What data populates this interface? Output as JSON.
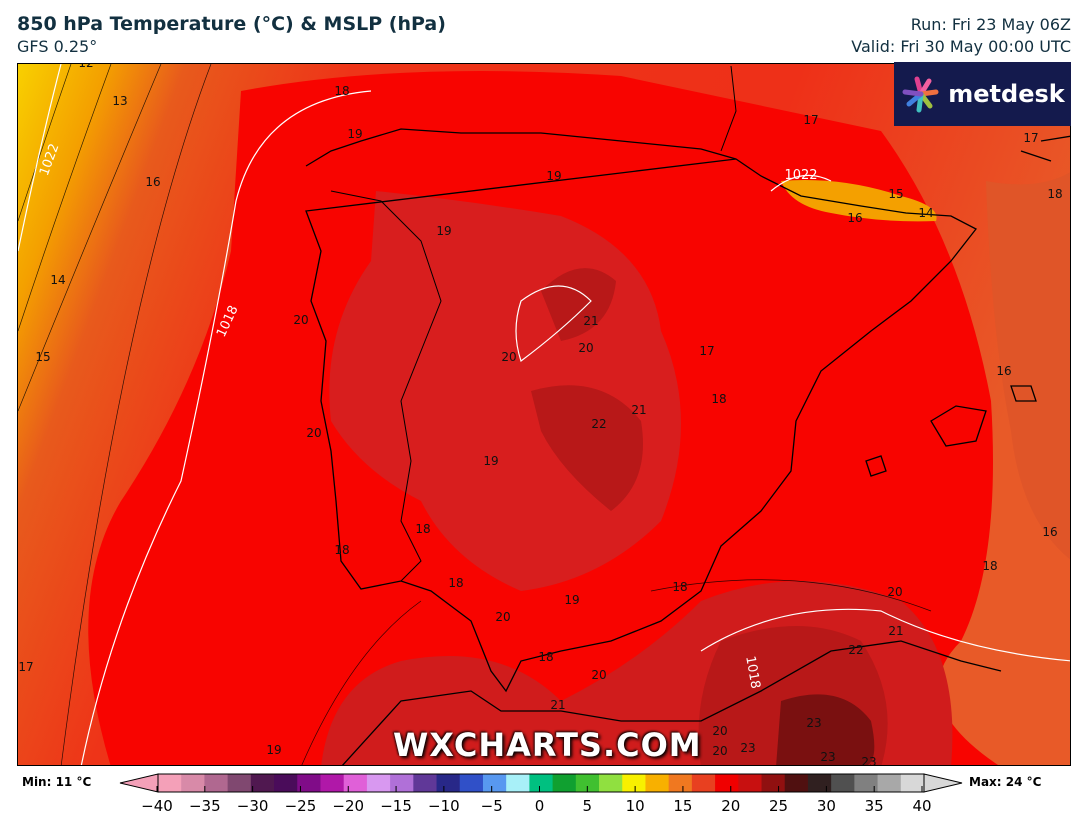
{
  "header": {
    "title": "850 hPa Temperature (°C) & MSLP (hPa)",
    "model": "GFS 0.25°",
    "run": "Run: Fri 23 May 06Z",
    "valid": "Valid: Fri 30 May 00:00 UTC"
  },
  "logo": {
    "text": "metdesk"
  },
  "watermark": "WXCHARTS.COM",
  "legend": {
    "min_label": "Min: 11 °C",
    "max_label": "Max: 24 °C",
    "ticks": [
      "−40",
      "−35",
      "−30",
      "−25",
      "−20",
      "−15",
      "−10",
      "−5",
      "0",
      "5",
      "10",
      "15",
      "20",
      "25",
      "30",
      "35",
      "40"
    ],
    "colors": [
      "#f4a0b8",
      "#d88aa8",
      "#b06890",
      "#804870",
      "#501850",
      "#4a0c5a",
      "#800c88",
      "#b018a8",
      "#e060d8",
      "#d898f0",
      "#b070d8",
      "#603898",
      "#282888",
      "#3050c8",
      "#5898f0",
      "#a8f0f8",
      "#00c080",
      "#10a030",
      "#40c030",
      "#90e040",
      "#f8f000",
      "#f8b000",
      "#f07820",
      "#e84020",
      "#f00000",
      "#c81010",
      "#901010",
      "#501010",
      "#302020",
      "#505050",
      "#808080",
      "#a8a8a8",
      "#d8d8d8"
    ]
  },
  "temperature_labels": [
    "12",
    "13",
    "16",
    "14",
    "15",
    "17",
    "19",
    "18",
    "19",
    "19",
    "19",
    "20",
    "20",
    "21",
    "20",
    "20",
    "21",
    "22",
    "19",
    "18",
    "17",
    "17",
    "15",
    "16",
    "14",
    "17",
    "18",
    "16",
    "16",
    "18",
    "20",
    "21",
    "22",
    "23",
    "23",
    "23",
    "23",
    "20",
    "20",
    "18",
    "18",
    "18",
    "18",
    "19",
    "20",
    "18",
    "20",
    "21"
  ],
  "isobar_labels": [
    "1022",
    "1018",
    "1022",
    "1018"
  ]
}
